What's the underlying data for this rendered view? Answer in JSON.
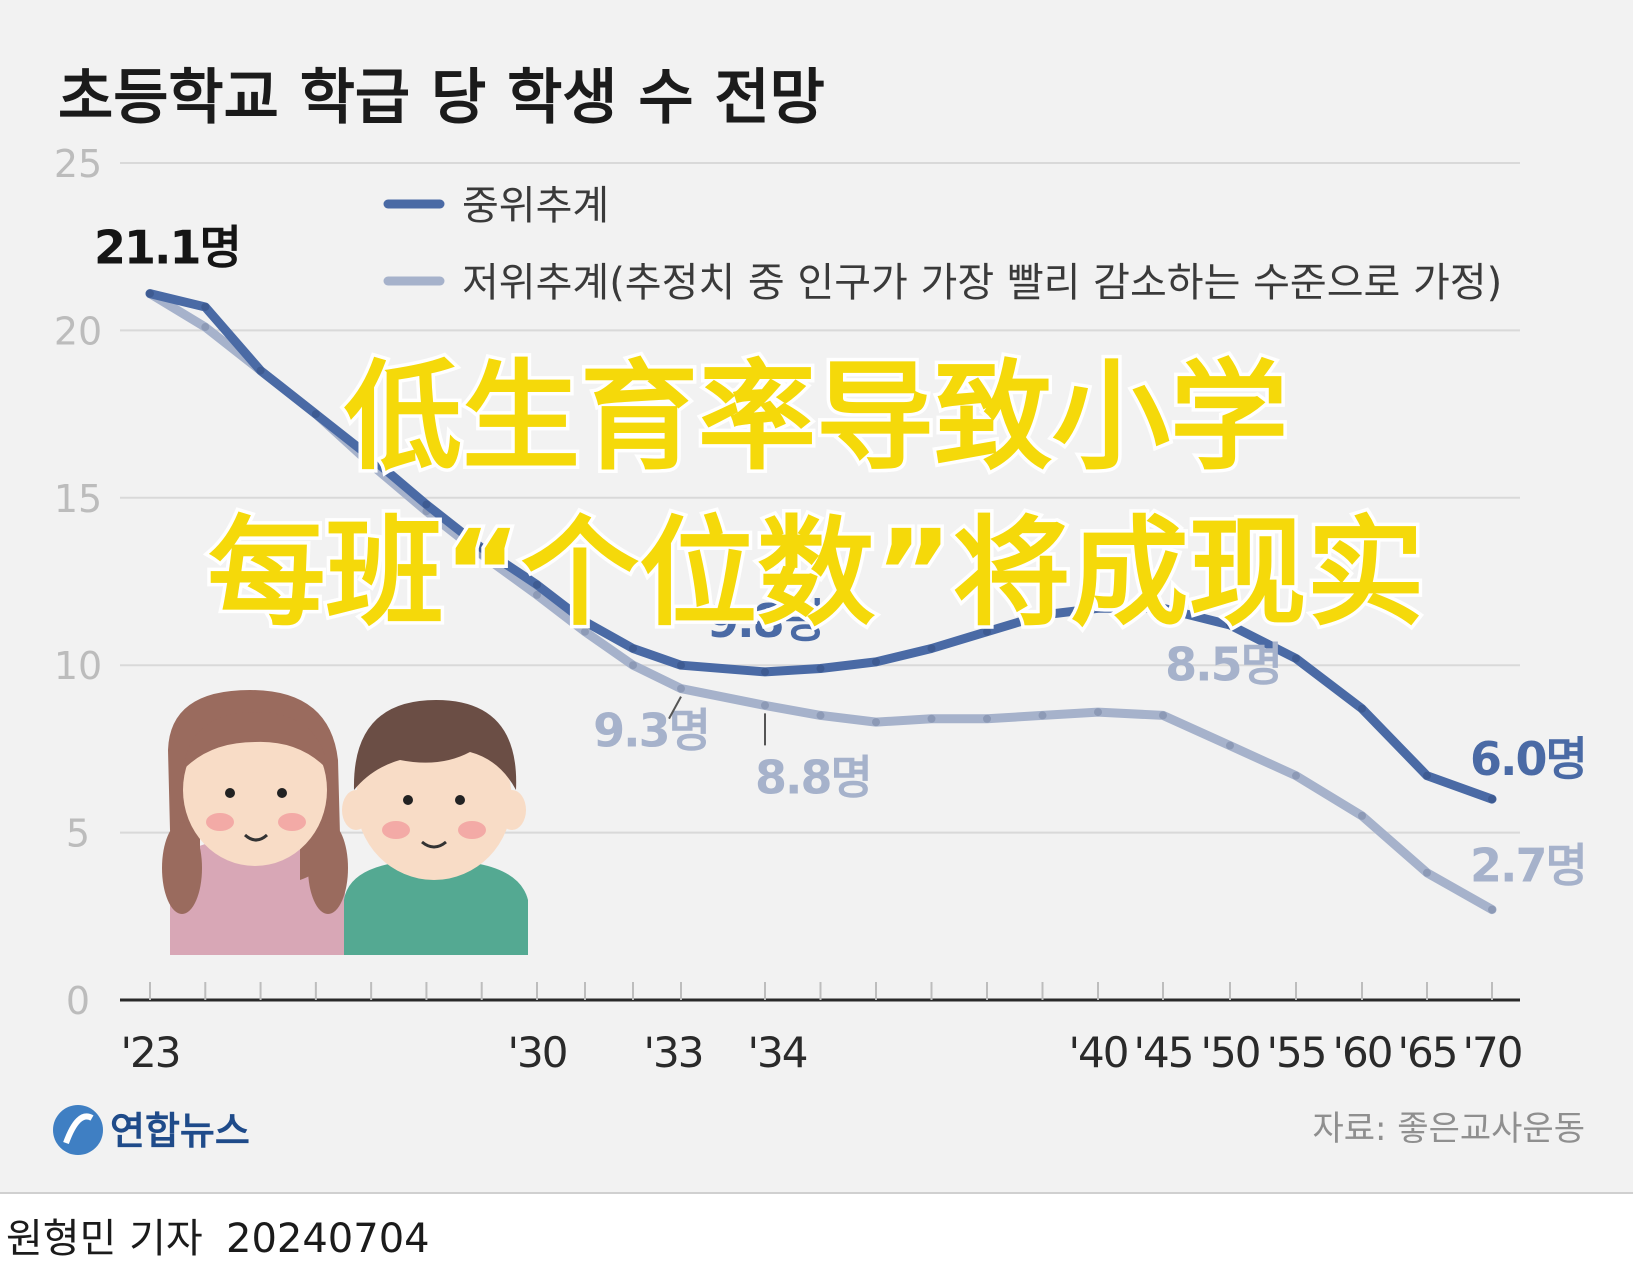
{
  "chart_data": {
    "type": "line",
    "title": "초등학교 학급 당 학생 수 전망",
    "ylim": [
      0,
      25
    ],
    "yticks": [
      0,
      5,
      10,
      15,
      20,
      25
    ],
    "grid": true,
    "legend_position": "top",
    "x_tick_labels": [
      {
        "year": 2023,
        "label": "'23"
      },
      {
        "year": 2030,
        "label": "'30"
      },
      {
        "year": 2033,
        "label": "'33"
      },
      {
        "year": 2034,
        "label": "'34"
      },
      {
        "year": 2040,
        "label": "'40"
      },
      {
        "year": 2045,
        "label": "'45"
      },
      {
        "year": 2050,
        "label": "'50"
      },
      {
        "year": 2055,
        "label": "'55"
      },
      {
        "year": 2060,
        "label": "'60"
      },
      {
        "year": 2065,
        "label": "'65"
      },
      {
        "year": 2070,
        "label": "'70"
      }
    ],
    "series": [
      {
        "name": "중위추계",
        "color": "#4a6aa5",
        "points": [
          {
            "year": 2023,
            "value": 21.1
          },
          {
            "year": 2024,
            "value": 20.7
          },
          {
            "year": 2025,
            "value": 18.8
          },
          {
            "year": 2026,
            "value": 17.5
          },
          {
            "year": 2027,
            "value": 16.2
          },
          {
            "year": 2028,
            "value": 14.8
          },
          {
            "year": 2029,
            "value": 13.5
          },
          {
            "year": 2030,
            "value": 12.4
          },
          {
            "year": 2031,
            "value": 11.3
          },
          {
            "year": 2032,
            "value": 10.5
          },
          {
            "year": 2033,
            "value": 10.0
          },
          {
            "year": 2034,
            "value": 9.8
          },
          {
            "year": 2035,
            "value": 9.9
          },
          {
            "year": 2036,
            "value": 10.1
          },
          {
            "year": 2037,
            "value": 10.5
          },
          {
            "year": 2038,
            "value": 11.0
          },
          {
            "year": 2039,
            "value": 11.5
          },
          {
            "year": 2040,
            "value": 11.7
          },
          {
            "year": 2045,
            "value": 11.7
          },
          {
            "year": 2050,
            "value": 11.2
          },
          {
            "year": 2055,
            "value": 10.2
          },
          {
            "year": 2060,
            "value": 8.7
          },
          {
            "year": 2065,
            "value": 6.7
          },
          {
            "year": 2070,
            "value": 6.0
          }
        ]
      },
      {
        "name": "저위추계(추정치 중 인구가 가장 빨리 감소하는 수준으로 가정)",
        "color": "#a6b2cb",
        "points": [
          {
            "year": 2023,
            "value": 21.1
          },
          {
            "year": 2024,
            "value": 20.1
          },
          {
            "year": 2025,
            "value": 18.8
          },
          {
            "year": 2026,
            "value": 17.5
          },
          {
            "year": 2027,
            "value": 16.0
          },
          {
            "year": 2028,
            "value": 14.6
          },
          {
            "year": 2029,
            "value": 13.3
          },
          {
            "year": 2030,
            "value": 12.1
          },
          {
            "year": 2031,
            "value": 11.0
          },
          {
            "year": 2032,
            "value": 10.0
          },
          {
            "year": 2033,
            "value": 9.3
          },
          {
            "year": 2034,
            "value": 8.8
          },
          {
            "year": 2035,
            "value": 8.5
          },
          {
            "year": 2036,
            "value": 8.3
          },
          {
            "year": 2037,
            "value": 8.4
          },
          {
            "year": 2038,
            "value": 8.4
          },
          {
            "year": 2039,
            "value": 8.5
          },
          {
            "year": 2040,
            "value": 8.6
          },
          {
            "year": 2045,
            "value": 8.5
          },
          {
            "year": 2050,
            "value": 7.6
          },
          {
            "year": 2055,
            "value": 6.7
          },
          {
            "year": 2060,
            "value": 5.5
          },
          {
            "year": 2065,
            "value": 3.8
          },
          {
            "year": 2070,
            "value": 2.7
          }
        ]
      }
    ],
    "annotations": [
      {
        "series": 0,
        "year": 2023,
        "text": "21.1명",
        "style": "dark"
      },
      {
        "series": 0,
        "year": 2034,
        "text": "9.8명",
        "style": "medium"
      },
      {
        "series": 1,
        "year": 2033,
        "text": "9.3명",
        "style": "light"
      },
      {
        "series": 1,
        "year": 2034,
        "text": "8.8명",
        "style": "light"
      },
      {
        "series": 1,
        "year": 2045,
        "text": "8.5명",
        "style": "light"
      },
      {
        "series": 0,
        "year": 2070,
        "text": "6.0명",
        "style": "medium"
      },
      {
        "series": 1,
        "year": 2070,
        "text": "2.7명",
        "style": "light"
      }
    ]
  },
  "overlay": {
    "line1": "低生育率导致小学",
    "line2": "每班“个位数”将成现实",
    "color": "#f5d90a"
  },
  "footer": {
    "logo_text": "연합뉴스",
    "source": "자료: 좋은교사운동",
    "byline": "원형민 기자",
    "date": "20240704"
  },
  "colors": {
    "background_panel": "#f2f2f2",
    "grid": "#d9d9d9",
    "axis_text": "#b7b7b7",
    "title": "#1b1b1b"
  }
}
